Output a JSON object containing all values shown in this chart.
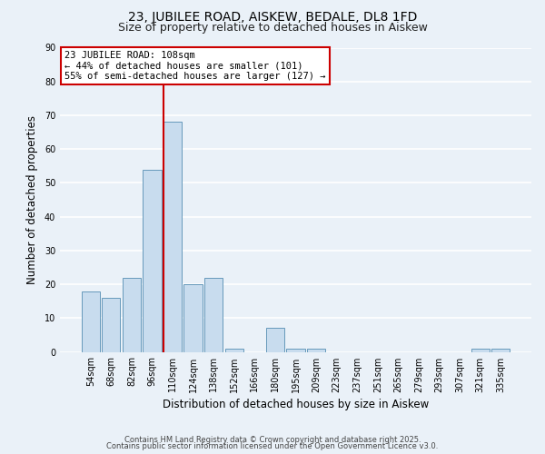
{
  "title": "23, JUBILEE ROAD, AISKEW, BEDALE, DL8 1FD",
  "subtitle": "Size of property relative to detached houses in Aiskew",
  "xlabel": "Distribution of detached houses by size in Aiskew",
  "ylabel": "Number of detached properties",
  "bar_color": "#c8dcee",
  "bar_edge_color": "#6699bb",
  "bg_color": "#eaf1f8",
  "grid_color": "#ffffff",
  "categories": [
    "54sqm",
    "68sqm",
    "82sqm",
    "96sqm",
    "110sqm",
    "124sqm",
    "138sqm",
    "152sqm",
    "166sqm",
    "180sqm",
    "195sqm",
    "209sqm",
    "223sqm",
    "237sqm",
    "251sqm",
    "265sqm",
    "279sqm",
    "293sqm",
    "307sqm",
    "321sqm",
    "335sqm"
  ],
  "values": [
    18,
    16,
    22,
    54,
    68,
    20,
    22,
    1,
    0,
    7,
    1,
    1,
    0,
    0,
    0,
    0,
    0,
    0,
    0,
    1,
    1
  ],
  "ylim": [
    0,
    90
  ],
  "yticks": [
    0,
    10,
    20,
    30,
    40,
    50,
    60,
    70,
    80,
    90
  ],
  "vline_color": "#cc0000",
  "vline_bin_index": 4,
  "annotation_line1": "23 JUBILEE ROAD: 108sqm",
  "annotation_line2": "← 44% of detached houses are smaller (101)",
  "annotation_line3": "55% of semi-detached houses are larger (127) →",
  "annotation_box_color": "#ffffff",
  "annotation_box_edge": "#cc0000",
  "footer1": "Contains HM Land Registry data © Crown copyright and database right 2025.",
  "footer2": "Contains public sector information licensed under the Open Government Licence v3.0.",
  "title_fontsize": 10,
  "subtitle_fontsize": 9,
  "xlabel_fontsize": 8.5,
  "ylabel_fontsize": 8.5,
  "tick_fontsize": 7,
  "annotation_fontsize": 7.5,
  "footer_fontsize": 6
}
